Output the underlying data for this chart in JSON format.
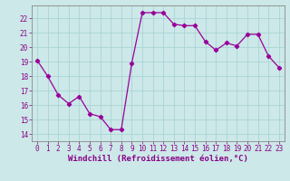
{
  "x": [
    0,
    1,
    2,
    3,
    4,
    5,
    6,
    7,
    8,
    9,
    10,
    11,
    12,
    13,
    14,
    15,
    16,
    17,
    18,
    19,
    20,
    21,
    22,
    23
  ],
  "y": [
    19.1,
    18.0,
    16.7,
    16.1,
    16.6,
    15.4,
    15.2,
    14.3,
    14.3,
    18.9,
    22.4,
    22.4,
    22.4,
    21.6,
    21.5,
    21.5,
    20.4,
    19.8,
    20.3,
    20.1,
    20.9,
    20.9,
    19.4,
    18.6
  ],
  "line_color": "#990099",
  "marker": "D",
  "markersize": 2.2,
  "linewidth": 0.9,
  "background_color": "#cce8e8",
  "grid_color": "#aad4d4",
  "xlabel": "Windchill (Refroidissement éolien,°C)",
  "xlabel_fontsize": 6.5,
  "ylim": [
    13.5,
    22.9
  ],
  "xlim": [
    -0.5,
    23.5
  ],
  "yticks": [
    14,
    15,
    16,
    17,
    18,
    19,
    20,
    21,
    22
  ],
  "xticks": [
    0,
    1,
    2,
    3,
    4,
    5,
    6,
    7,
    8,
    9,
    10,
    11,
    12,
    13,
    14,
    15,
    16,
    17,
    18,
    19,
    20,
    21,
    22,
    23
  ],
  "tick_color": "#880088",
  "tick_fontsize": 5.5,
  "spine_color": "#888888"
}
